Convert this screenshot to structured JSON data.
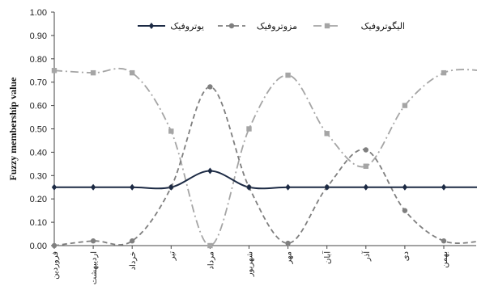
{
  "chart_data": {
    "type": "line",
    "ylabel": "Fuzzy membership value",
    "ylim": [
      0,
      1
    ],
    "yticks": [
      "0.00",
      "0.10",
      "0.20",
      "0.30",
      "0.40",
      "0.50",
      "0.60",
      "0.70",
      "0.80",
      "0.90",
      "1.00"
    ],
    "categories": [
      "فروردین",
      "اردیبهشت",
      "خرداد",
      "تیر",
      "مرداد",
      "شهریور",
      "مهر",
      "آبان",
      "آذر",
      "دی",
      "بهمن",
      "اسفند"
    ],
    "grid": false,
    "legend_position": "top",
    "series": [
      {
        "name": "یوتروفیک",
        "color": "#1c2a44",
        "dash": "solid",
        "marker": "diamond",
        "values": [
          0.25,
          0.25,
          0.25,
          0.25,
          0.32,
          0.25,
          0.25,
          0.25,
          0.25,
          0.25,
          0.25,
          0.25
        ]
      },
      {
        "name": "مزوتروفیک",
        "color": "#7f7f7f",
        "dash": "dashed",
        "marker": "circle",
        "values": [
          0.0,
          0.02,
          0.02,
          0.25,
          0.68,
          0.25,
          0.01,
          0.25,
          0.41,
          0.15,
          0.02,
          0.02
        ]
      },
      {
        "name": "الیگوتروفیک",
        "color": "#a5a5a5",
        "dash": "dashdot",
        "marker": "square",
        "values": [
          0.75,
          0.74,
          0.74,
          0.49,
          0.0,
          0.5,
          0.73,
          0.48,
          0.34,
          0.6,
          0.74,
          0.75
        ]
      }
    ]
  }
}
